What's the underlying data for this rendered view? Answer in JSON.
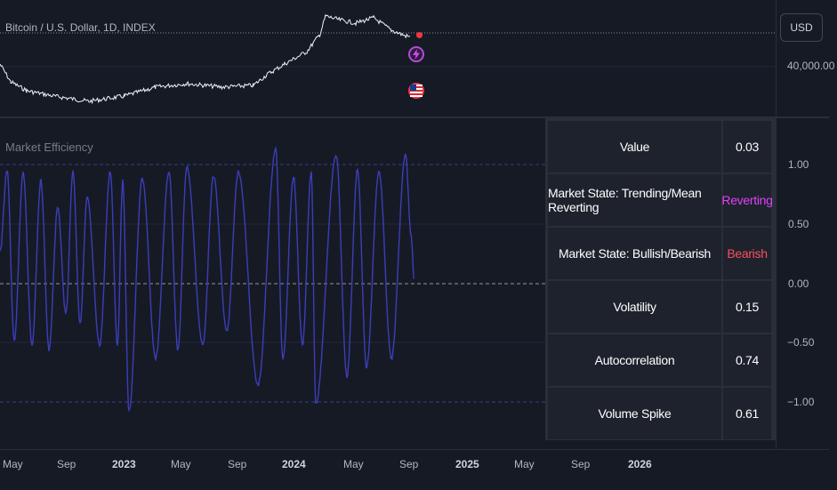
{
  "symbol_title": "Bitcoin / U.S. Dollar, 1D, INDEX",
  "currency_button": "USD",
  "price_axis": {
    "price_label": "40,000.00"
  },
  "indicator": {
    "title": "Market Efficiency",
    "axis_ticks": [
      "1.00",
      "0.50",
      "0.00",
      "−0.50",
      "−1.00"
    ],
    "line_color": "#3b3eb8"
  },
  "stats_table": {
    "rows": [
      {
        "label": "Value",
        "value": "0.03",
        "value_color": "#ffffff"
      },
      {
        "label": "Market State: Trending/Mean Reverting",
        "value": "Reverting",
        "value_color": "#e040fb"
      },
      {
        "label": "Market State: Bullish/Bearish",
        "value": "Bearish",
        "value_color": "#f7525f"
      },
      {
        "label": "Volatility",
        "value": "0.15",
        "value_color": "#ffffff"
      },
      {
        "label": "Autocorrelation",
        "value": "0.74",
        "value_color": "#ffffff"
      },
      {
        "label": "Volume Spike",
        "value": "0.61",
        "value_color": "#ffffff"
      }
    ]
  },
  "time_axis": [
    {
      "label": "May",
      "bold": false
    },
    {
      "label": "Sep",
      "bold": false
    },
    {
      "label": "2023",
      "bold": true
    },
    {
      "label": "May",
      "bold": false
    },
    {
      "label": "Sep",
      "bold": false
    },
    {
      "label": "2024",
      "bold": true
    },
    {
      "label": "May",
      "bold": false
    },
    {
      "label": "Sep",
      "bold": false
    },
    {
      "label": "2025",
      "bold": true
    },
    {
      "label": "May",
      "bold": false
    },
    {
      "label": "Sep",
      "bold": false
    },
    {
      "label": "2026",
      "bold": true
    }
  ],
  "icons": [
    "lightning-badge-icon",
    "us-flag-badge-icon"
  ]
}
